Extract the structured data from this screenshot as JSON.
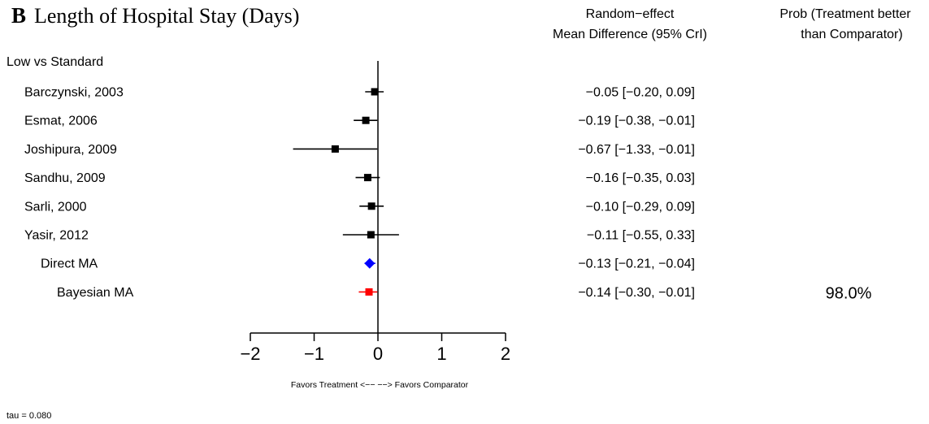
{
  "panel": {
    "letter": "B",
    "title": "Length of Hospital Stay (Days)"
  },
  "columns": {
    "estimate_header": [
      "Random−effect",
      "Mean Difference (95% CrI)"
    ],
    "prob_header": [
      "Prob (Treatment better",
      "than Comparator)"
    ]
  },
  "chart_data": {
    "type": "forest",
    "group_label": "Low vs Standard",
    "xlim": [
      -2,
      2
    ],
    "xticks": [
      -2,
      -1,
      0,
      1,
      2
    ],
    "xtick_labels": [
      "−2",
      "−1",
      "0",
      "1",
      "2"
    ],
    "reference_line": 0,
    "xlabel": "Favors Treatment <−− −−> Favors Comparator",
    "rows": [
      {
        "label": "Barczynski, 2003",
        "kind": "study",
        "est": -0.05,
        "lo": -0.2,
        "hi": 0.09,
        "text": "−0.05 [−0.20,  0.09]",
        "color": "#000000"
      },
      {
        "label": "Esmat, 2006",
        "kind": "study",
        "est": -0.19,
        "lo": -0.38,
        "hi": -0.01,
        "text": "−0.19 [−0.38, −0.01]",
        "color": "#000000"
      },
      {
        "label": "Joshipura, 2009",
        "kind": "study",
        "est": -0.67,
        "lo": -1.33,
        "hi": -0.01,
        "text": "−0.67 [−1.33, −0.01]",
        "color": "#000000"
      },
      {
        "label": "Sandhu, 2009",
        "kind": "study",
        "est": -0.16,
        "lo": -0.35,
        "hi": 0.03,
        "text": "−0.16 [−0.35,  0.03]",
        "color": "#000000"
      },
      {
        "label": "Sarli, 2000",
        "kind": "study",
        "est": -0.1,
        "lo": -0.29,
        "hi": 0.09,
        "text": "−0.10 [−0.29,  0.09]",
        "color": "#000000"
      },
      {
        "label": "Yasir, 2012",
        "kind": "study",
        "est": -0.11,
        "lo": -0.55,
        "hi": 0.33,
        "text": "−0.11 [−0.55,  0.33]",
        "color": "#000000"
      },
      {
        "label": "Direct MA",
        "kind": "direct",
        "est": -0.13,
        "lo": -0.21,
        "hi": -0.04,
        "text": "−0.13 [−0.21, −0.04]",
        "color": "#0000ff"
      },
      {
        "label": "Bayesian MA",
        "kind": "bayesian",
        "est": -0.14,
        "lo": -0.3,
        "hi": -0.01,
        "text": "−0.14 [−0.30, −0.01]",
        "color": "#ff0000",
        "prob": "98.0%"
      }
    ]
  },
  "footnote": "tau = 0.080"
}
